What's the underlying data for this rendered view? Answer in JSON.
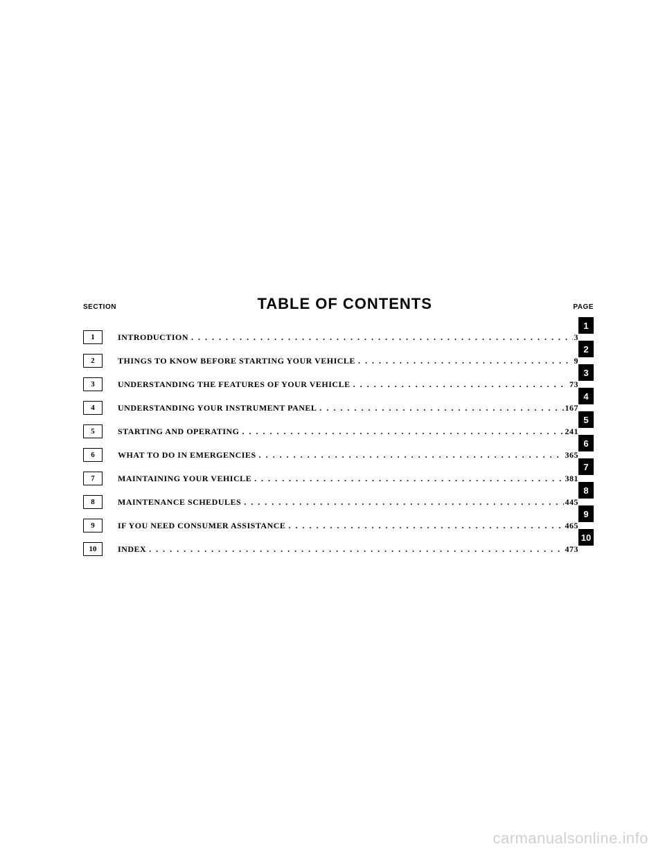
{
  "header": {
    "section_label": "SECTION",
    "title": "TABLE OF CONTENTS",
    "page_label": "PAGE"
  },
  "toc": {
    "entries": [
      {
        "num": "1",
        "title": "INTRODUCTION",
        "page": "3"
      },
      {
        "num": "2",
        "title": "THINGS TO KNOW BEFORE STARTING YOUR VEHICLE",
        "page": "9"
      },
      {
        "num": "3",
        "title": "UNDERSTANDING THE FEATURES OF YOUR VEHICLE",
        "page": "73"
      },
      {
        "num": "4",
        "title": "UNDERSTANDING YOUR INSTRUMENT PANEL",
        "page": "167"
      },
      {
        "num": "5",
        "title": "STARTING AND OPERATING",
        "page": "241"
      },
      {
        "num": "6",
        "title": "WHAT TO DO IN EMERGENCIES",
        "page": "365"
      },
      {
        "num": "7",
        "title": "MAINTAINING YOUR VEHICLE",
        "page": "381"
      },
      {
        "num": "8",
        "title": "MAINTENANCE SCHEDULES",
        "page": "445"
      },
      {
        "num": "9",
        "title": "IF YOU NEED CONSUMER ASSISTANCE",
        "page": "465"
      },
      {
        "num": "10",
        "title": "INDEX",
        "page": "473"
      }
    ]
  },
  "tabs": [
    "1",
    "2",
    "3",
    "4",
    "5",
    "6",
    "7",
    "8",
    "9",
    "10"
  ],
  "watermark": "carmanualsonline.info",
  "dots": ". . . . . . . . . . . . . . . . . . . . . . . . . . . . . . . . . . . . . . . . . . . . . . . . . . . . . . . . . . . . . . . . . . . . . . . . . . . . . . . . . . . . . . . . . . . . . . . . . . . . . . . . . . . . . . . . . . . . . . . . . . . . . . . . . . . . . . . . . . . . . . . . . . . . . . ."
}
